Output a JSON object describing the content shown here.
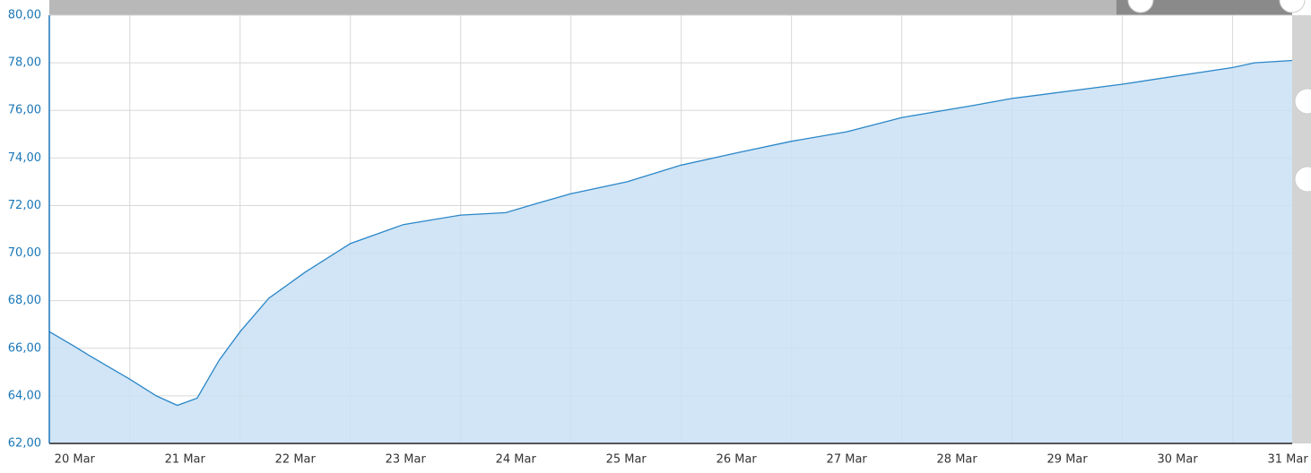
{
  "chart_data": {
    "type": "area",
    "x": [
      20.27,
      20.49,
      20.63,
      21.0,
      21.24,
      21.43,
      21.61,
      21.81,
      22.0,
      22.26,
      22.59,
      23.0,
      23.48,
      24.0,
      24.41,
      24.7,
      25.0,
      25.51,
      26.0,
      26.49,
      27.0,
      27.5,
      27.67,
      28.0,
      28.64,
      29.0,
      30.0,
      31.0,
      31.2,
      31.54
    ],
    "values": [
      66.7,
      66.1,
      65.7,
      64.7,
      64.0,
      63.6,
      63.9,
      65.5,
      66.7,
      68.1,
      69.2,
      70.4,
      71.2,
      71.6,
      71.7,
      72.1,
      72.5,
      73.0,
      73.7,
      74.2,
      74.7,
      75.1,
      75.3,
      75.7,
      76.2,
      76.5,
      77.1,
      77.8,
      78.0,
      78.1
    ],
    "color": "#2a86c8",
    "fill": "#c9e1f5",
    "xlim": [
      20.27,
      31.54
    ],
    "xticks": [
      {
        "value": 20.5,
        "label": "20 Mar"
      },
      {
        "value": 21.5,
        "label": "21 Mar"
      },
      {
        "value": 22.5,
        "label": "22 Mar"
      },
      {
        "value": 23.5,
        "label": "23 Mar"
      },
      {
        "value": 24.5,
        "label": "24 Mar"
      },
      {
        "value": 25.5,
        "label": "25 Mar"
      },
      {
        "value": 26.5,
        "label": "26 Mar"
      },
      {
        "value": 27.5,
        "label": "27 Mar"
      },
      {
        "value": 28.5,
        "label": "28 Mar"
      },
      {
        "value": 29.5,
        "label": "29 Mar"
      },
      {
        "value": 30.5,
        "label": "30 Mar"
      },
      {
        "value": 31.5,
        "label": "31 Mar"
      }
    ],
    "xgrid": [
      21,
      22,
      23,
      24,
      25,
      26,
      27,
      28,
      29,
      30,
      31
    ],
    "ylim": [
      62,
      80
    ],
    "yticks": [
      {
        "value": 62,
        "label": "62,00"
      },
      {
        "value": 64,
        "label": "64,00"
      },
      {
        "value": 66,
        "label": "66,00"
      },
      {
        "value": 68,
        "label": "68,00"
      },
      {
        "value": 70,
        "label": "70,00"
      },
      {
        "value": 72,
        "label": "72,00"
      },
      {
        "value": 74,
        "label": "74,00"
      },
      {
        "value": 76,
        "label": "76,00"
      },
      {
        "value": 78,
        "label": "78,00"
      },
      {
        "value": 80,
        "label": "80,00"
      }
    ],
    "grid": true
  }
}
